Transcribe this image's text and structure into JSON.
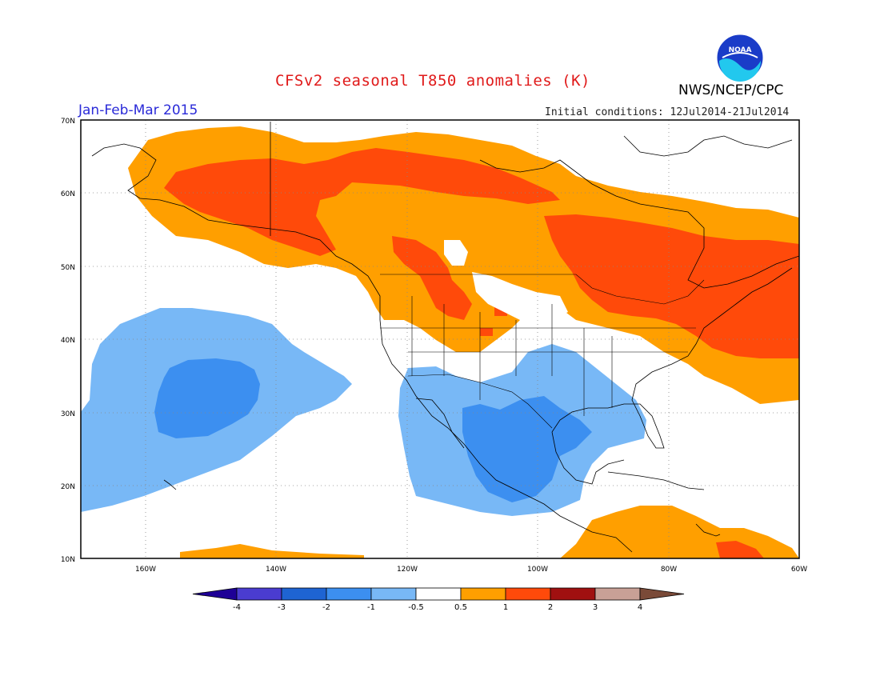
{
  "title": "CFSv2 seasonal T850 anomalies (K)",
  "organization": "NWS/NCEP/CPC",
  "logo_text": "NOAA",
  "period": "Jan-Feb-Mar 2015",
  "initial_conditions": "Initial conditions: 12Jul2014-21Jul2014",
  "map": {
    "lat_labels": [
      "10N",
      "20N",
      "30N",
      "40N",
      "50N",
      "60N",
      "70N"
    ],
    "lon_labels": [
      "160W",
      "140W",
      "120W",
      "100W",
      "80W",
      "60W"
    ],
    "lon_range": [
      -172,
      -60
    ],
    "lat_range": [
      10,
      70
    ],
    "gridlines": "dotted",
    "anomaly_regions": [
      {
        "category": "0.5 to 1",
        "area": "Alaska, western Canada, Pacific Northwest (outer band)"
      },
      {
        "category": "1 to 2",
        "area": "Alaska through Yukon and Northwest Territories"
      },
      {
        "category": "1 to 2",
        "area": "Eastern Canada, Great Lakes, New England"
      },
      {
        "category": "-1 to -0.5",
        "area": "Central North Pacific"
      },
      {
        "category": "-2 to -1",
        "area": "Central North Pacific (core)"
      },
      {
        "category": "-1 to -0.5",
        "area": "Mexico and southern US"
      },
      {
        "category": "-2 to -1",
        "area": "Central Mexico and Texas"
      },
      {
        "category": "0.5 to 1",
        "area": "Caribbean and northern South America"
      }
    ]
  },
  "colorbar": {
    "labels": [
      "-4",
      "-3",
      "-2",
      "-1",
      "-0.5",
      "0.5",
      "1",
      "2",
      "3",
      "4"
    ],
    "colors": [
      "#1e0096",
      "#4a3cd0",
      "#1e64d2",
      "#3c8ff0",
      "#78b8f6",
      "#ffffff",
      "#ff9f00",
      "#ff4a0a",
      "#a01010",
      "#c8a096",
      "#7a4a38"
    ]
  }
}
